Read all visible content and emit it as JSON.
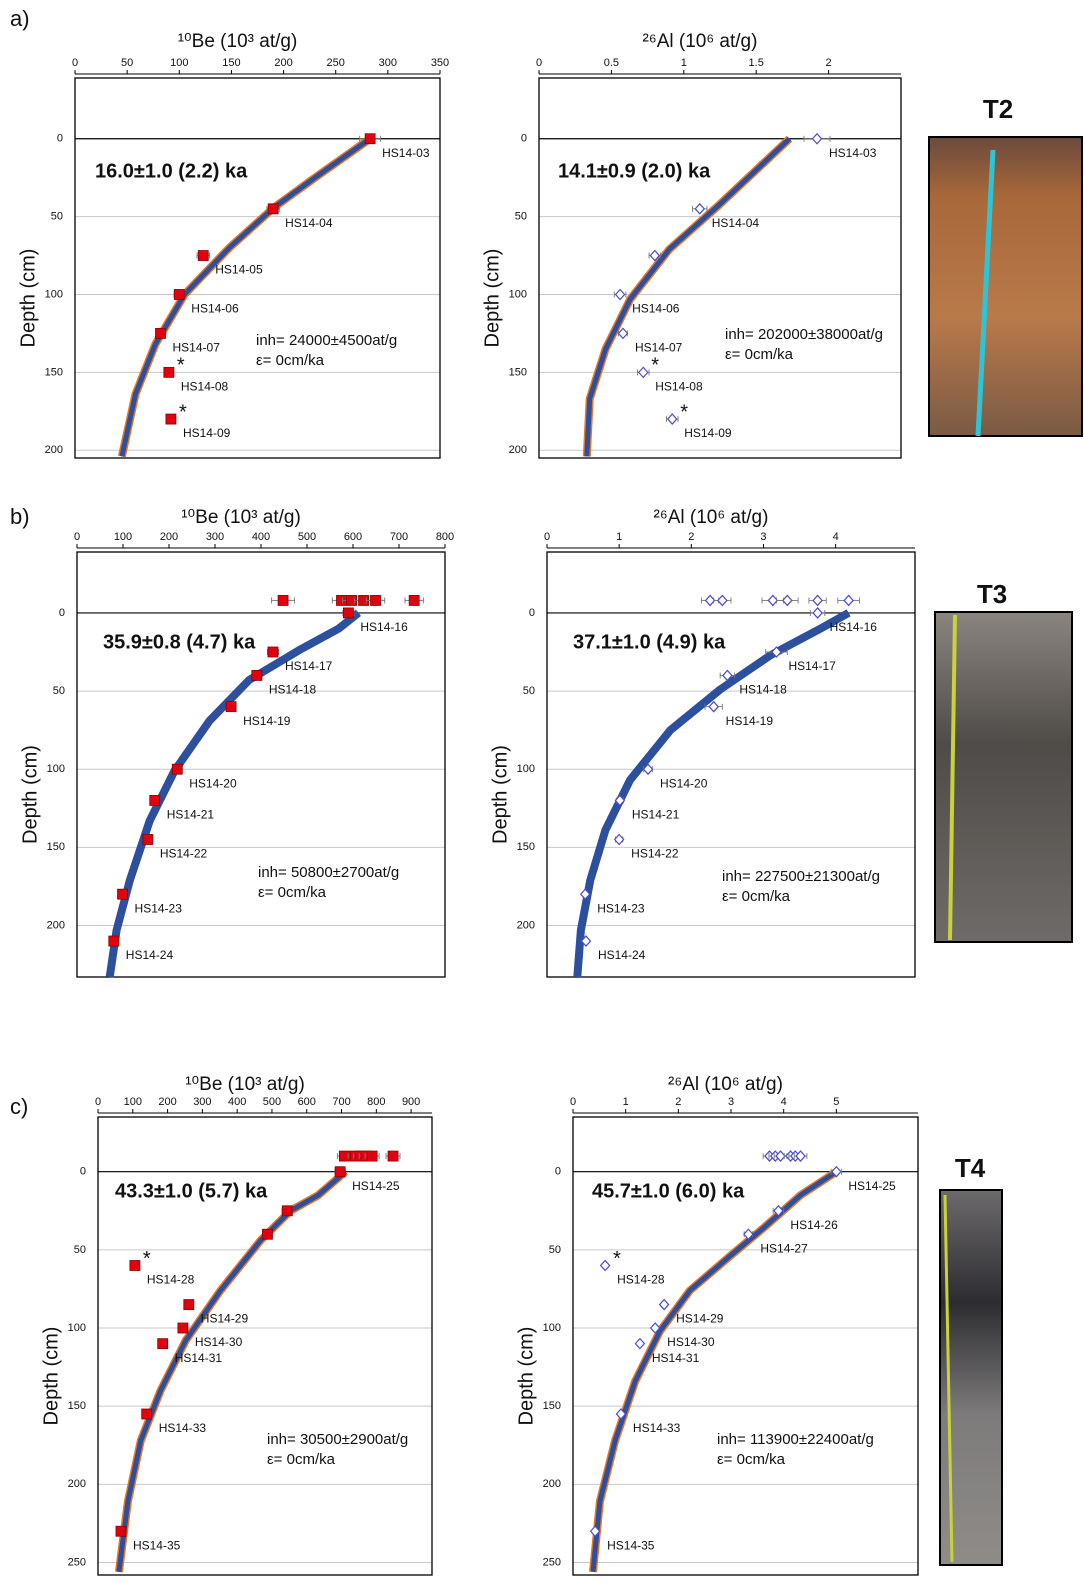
{
  "panels": [
    {
      "label": "a)",
      "photo": "T2"
    },
    {
      "label": "b)",
      "photo": "T3"
    },
    {
      "label": "c)",
      "photo": "T4"
    }
  ],
  "chart_data": [
    {
      "type": "scatter",
      "xlabel": "¹⁰Be  (10³ at/g)",
      "ylabel": "Depth (cm)",
      "marker": "square",
      "marker_color": "#e3000f",
      "xlim": [
        0,
        350
      ],
      "xticks": [
        0,
        50,
        100,
        150,
        200,
        250,
        300,
        350
      ],
      "ylim": [
        -39,
        205
      ],
      "y_inverted": true,
      "yticks": [
        0,
        50,
        100,
        150,
        200
      ],
      "grid": true,
      "samples": {
        "x": [
          283,
          190,
          123,
          100,
          82,
          90,
          92
        ],
        "y": [
          0,
          45,
          75,
          100,
          125,
          150,
          180
        ],
        "xerr": [
          10,
          6,
          6,
          5,
          4,
          4,
          4
        ],
        "labels": [
          "HS14-03",
          "HS14-04",
          "HS14-05",
          "HS14-06",
          "HS14-07",
          "HS14-08",
          "HS14-09"
        ],
        "flags": [
          null,
          null,
          null,
          null,
          null,
          "*",
          "*"
        ]
      },
      "model": {
        "color": "#2c4f9e",
        "outline": "#e87722",
        "x": [
          283,
          230,
          191,
          148,
          105,
          77,
          58,
          45
        ],
        "y": [
          0,
          25,
          44,
          70,
          100,
          132,
          164,
          204
        ]
      },
      "annotations": {
        "age": "16.0±1.0 (2.2) ka",
        "inh": "inh= 24000±4500at/g",
        "erosion": "ε= 0cm/ka"
      }
    },
    {
      "type": "scatter",
      "xlabel": "²⁶Al  (10⁶ at/g)",
      "ylabel": "Depth (cm)",
      "marker": "diamond",
      "marker_color": "#4b4bd2",
      "xlim": [
        0,
        2.5
      ],
      "xticks": [
        0,
        0.5,
        1,
        1.5,
        2
      ],
      "ylim": [
        -39,
        205
      ],
      "y_inverted": true,
      "yticks": [
        0,
        50,
        100,
        150,
        200
      ],
      "grid": true,
      "samples": {
        "x": [
          1.92,
          1.11,
          0.8,
          0.56,
          0.58,
          0.72,
          0.92
        ],
        "y": [
          0,
          45,
          75,
          100,
          125,
          150,
          180
        ],
        "xerr": [
          0.09,
          0.05,
          0.04,
          0.04,
          0.03,
          0.04,
          0.04
        ],
        "labels": [
          "HS14-03",
          "HS14-04",
          null,
          "HS14-06",
          "HS14-07",
          "HS14-08",
          "HS14-09"
        ],
        "flags": [
          null,
          null,
          null,
          null,
          null,
          "*",
          "*"
        ]
      },
      "model": {
        "color": "#2c4f9e",
        "outline": "#e87722",
        "x": [
          1.73,
          1.25,
          0.9,
          0.63,
          0.46,
          0.35,
          0.33
        ],
        "y": [
          0,
          42,
          71,
          103,
          135,
          167,
          204
        ]
      },
      "annotations": {
        "age": "14.1±0.9 (2.0) ka",
        "inh": "inh= 202000±38000at/g",
        "erosion": "ε= 0cm/ka"
      }
    },
    {
      "type": "scatter",
      "xlabel": "¹⁰Be (10³ at/g)",
      "ylabel": "Depth (cm)",
      "marker": "square",
      "marker_color": "#e3000f",
      "xlim": [
        0,
        800
      ],
      "xticks": [
        0,
        100,
        200,
        300,
        400,
        500,
        600,
        700,
        800
      ],
      "ylim": [
        -39,
        233
      ],
      "y_inverted": true,
      "yticks": [
        0,
        50,
        100,
        150,
        200
      ],
      "grid": true,
      "samples": {
        "x": [
          590,
          426,
          391,
          335,
          218,
          169,
          154,
          99,
          80
        ],
        "y": [
          0,
          25,
          40,
          60,
          100,
          120,
          145,
          180,
          210
        ],
        "xerr": [
          12,
          12,
          10,
          9,
          6,
          5,
          5,
          4,
          4
        ],
        "labels": [
          "HS14-16",
          "HS14-17",
          "HS14-18",
          "HS14-19",
          "HS14-20",
          "HS14-21",
          "HS14-22",
          "HS14-23",
          "HS14-24"
        ],
        "flags": [
          null,
          null,
          null,
          null,
          null,
          null,
          null,
          null,
          null
        ]
      },
      "surface": {
        "x": [
          448,
          575,
          597,
          623,
          649,
          733
        ],
        "y": [
          -8,
          -8,
          -8,
          -8,
          -8,
          -8
        ],
        "xerr": [
          25,
          20,
          20,
          20,
          20,
          20
        ]
      },
      "model": {
        "color": "#2c4f9e",
        "outline": "#2c4f9e",
        "x": [
          612,
          569,
          482,
          374,
          288,
          212,
          158,
          115,
          86,
          71
        ],
        "y": [
          0,
          10,
          24,
          43,
          69,
          101,
          133,
          171,
          203,
          233
        ]
      },
      "annotations": {
        "age": "35.9±0.8 (4.7) ka",
        "inh": "inh= 50800±2700at/g",
        "erosion": "ε= 0cm/ka"
      }
    },
    {
      "type": "scatter",
      "xlabel": "²⁶Al  (10⁶ at/g)",
      "ylabel": "Depth (cm)",
      "marker": "diamond",
      "marker_color": "#4b4bd2",
      "xlim": [
        0,
        5.1
      ],
      "xticks": [
        0,
        1,
        2,
        3,
        4
      ],
      "ylim": [
        -39,
        233
      ],
      "y_inverted": true,
      "yticks": [
        0,
        50,
        100,
        150,
        200
      ],
      "grid": true,
      "samples": {
        "x": [
          3.75,
          3.18,
          2.5,
          2.31,
          1.4,
          1.01,
          1.0,
          0.53,
          0.54
        ],
        "y": [
          0,
          25,
          40,
          60,
          100,
          120,
          145,
          180,
          210
        ],
        "xerr": [
          0.1,
          0.15,
          0.1,
          0.12,
          0.06,
          0.05,
          0.05,
          0.03,
          0.03
        ],
        "labels": [
          "HS14-16",
          "HS14-17",
          "HS14-18",
          "HS14-19",
          "HS14-20",
          "HS14-21",
          "HS14-22",
          "HS14-23",
          "HS14-24"
        ],
        "flags": [
          null,
          null,
          null,
          null,
          null,
          null,
          null,
          null,
          null
        ]
      },
      "surface": {
        "x": [
          2.26,
          2.43,
          3.13,
          3.33,
          3.75,
          4.18
        ],
        "y": [
          -8,
          -8,
          -8,
          -8,
          -8,
          -8
        ],
        "xerr": [
          0.12,
          0.12,
          0.15,
          0.15,
          0.12,
          0.15
        ]
      },
      "model": {
        "color": "#2c4f9e",
        "outline": "#2c4f9e",
        "x": [
          4.18,
          3.79,
          3.1,
          2.4,
          1.71,
          1.15,
          0.81,
          0.6,
          0.47,
          0.42
        ],
        "y": [
          0,
          10,
          27,
          49,
          75,
          107,
          139,
          171,
          203,
          233
        ]
      },
      "annotations": {
        "age": "37.1±1.0 (4.9) ka",
        "inh": "inh= 227500±21300at/g",
        "erosion": "ε= 0cm/ka"
      }
    },
    {
      "type": "scatter",
      "xlabel": "¹⁰Be (10³ at/g)",
      "ylabel": "Depth (cm)",
      "marker": "square",
      "marker_color": "#e3000f",
      "xlim": [
        0,
        960
      ],
      "xticks": [
        0,
        100,
        200,
        300,
        400,
        500,
        600,
        700,
        800,
        900
      ],
      "ylim": [
        -35,
        258
      ],
      "y_inverted": true,
      "yticks": [
        0,
        50,
        100,
        150,
        200,
        250
      ],
      "grid": true,
      "samples": {
        "x": [
          696,
          544,
          487,
          106,
          261,
          244,
          186,
          140,
          66
        ],
        "y": [
          0,
          25,
          40,
          60,
          85,
          100,
          110,
          155,
          230
        ],
        "xerr": [
          15,
          15,
          12,
          8,
          8,
          8,
          6,
          5,
          4
        ],
        "labels": [
          "HS14-25",
          null,
          null,
          "HS14-28",
          "HS14-29",
          "HS14-30",
          "HS14-31",
          "HS14-33",
          "HS14-35"
        ],
        "flags": [
          null,
          null,
          null,
          "*",
          null,
          null,
          null,
          null,
          null
        ]
      },
      "surface": {
        "x": [
          708,
          739,
          754,
          771,
          788,
          848
        ],
        "y": [
          -10,
          -10,
          -10,
          -10,
          -10,
          -10
        ],
        "xerr": [
          20,
          20,
          20,
          20,
          20,
          20
        ]
      },
      "model": {
        "color": "#2c4f9e",
        "outline": "#e87722",
        "x": [
          711,
          633,
          553,
          467,
          352,
          252,
          180,
          123,
          86,
          60
        ],
        "y": [
          0,
          15,
          25,
          44,
          76,
          108,
          140,
          172,
          211,
          256
        ]
      },
      "annotations": {
        "age": "43.3±1.0 (5.7) ka",
        "inh": "inh= 30500±2900at/g",
        "erosion": "ε= 0cm/ka"
      }
    },
    {
      "type": "scatter",
      "xlabel": "²⁶Al  (10⁶ at/g)",
      "ylabel": "Depth (cm)",
      "marker": "diamond",
      "marker_color": "#4b4bd2",
      "xlim": [
        0,
        6.55
      ],
      "xticks": [
        0,
        1,
        2,
        3,
        4,
        5
      ],
      "ylim": [
        -35,
        258
      ],
      "y_inverted": true,
      "yticks": [
        0,
        50,
        100,
        150,
        200,
        250
      ],
      "grid": true,
      "samples": {
        "x": [
          5.0,
          3.9,
          3.33,
          0.61,
          1.73,
          1.56,
          1.27,
          0.91,
          0.42
        ],
        "y": [
          0,
          25,
          40,
          60,
          85,
          100,
          110,
          155,
          230
        ],
        "xerr": [
          0.1,
          0.1,
          0.08,
          0.05,
          0.05,
          0.05,
          0.04,
          0.04,
          0.03
        ],
        "labels": [
          "HS14-25",
          "HS14-26",
          "HS14-27",
          "HS14-28",
          "HS14-29",
          "HS14-30",
          "HS14-31",
          "HS14-33",
          "HS14-35"
        ],
        "flags": [
          null,
          null,
          null,
          "*",
          null,
          null,
          null,
          null,
          null
        ]
      },
      "surface": {
        "x": [
          3.73,
          3.84,
          3.94,
          4.13,
          4.22,
          4.32
        ],
        "y": [
          -10,
          -10,
          -10,
          -10,
          -10,
          -10
        ],
        "xerr": [
          0.12,
          0.12,
          0.12,
          0.12,
          0.12,
          0.12
        ]
      },
      "model": {
        "color": "#2c4f9e",
        "outline": "#e87722",
        "x": [
          5.0,
          4.32,
          3.65,
          2.98,
          2.22,
          1.65,
          1.18,
          0.8,
          0.51,
          0.38
        ],
        "y": [
          0,
          15,
          35,
          54,
          76,
          102,
          134,
          172,
          211,
          256
        ]
      },
      "annotations": {
        "age": "45.7±1.0 (6.0) ka",
        "inh": "inh= 113900±22400at/g",
        "erosion": "ε= 0cm/ka"
      }
    }
  ]
}
